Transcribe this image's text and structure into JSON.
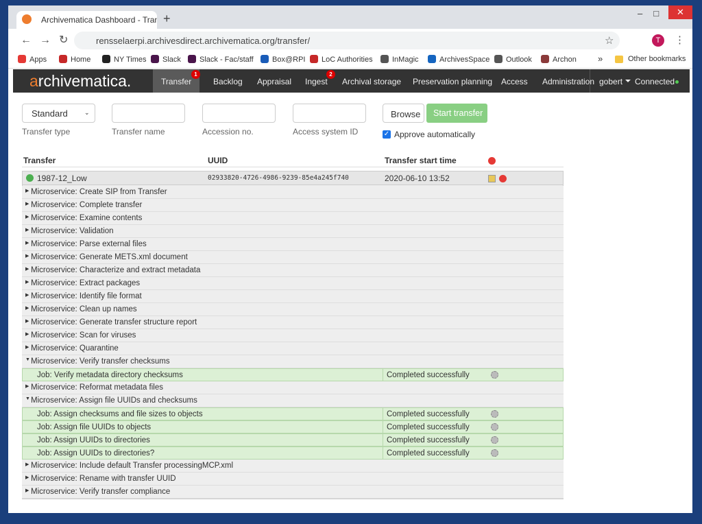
{
  "browser": {
    "tab_title": "Archivematica Dashboard - Trans",
    "url": "rensselaerpi.archivesdirect.archivematica.org/transfer/",
    "profile": "T",
    "bookmarks": [
      "Apps",
      "Home",
      "NY Times",
      "Slack",
      "Slack - Fac/staff",
      "Box@RPI",
      "LoC Authorities",
      "InMagic",
      "ArchivesSpace",
      "Outlook",
      "Archon"
    ],
    "overflow": "»",
    "other_bookmarks": "Other bookmarks"
  },
  "nav": {
    "logo": "archivematica.",
    "items": [
      {
        "label": "Transfer",
        "badge": 1
      },
      {
        "label": "Backlog"
      },
      {
        "label": "Appraisal"
      },
      {
        "label": "Ingest",
        "badge": 2
      },
      {
        "label": "Archival storage"
      },
      {
        "label": "Preservation planning"
      },
      {
        "label": "Access"
      },
      {
        "label": "Administration"
      }
    ],
    "user": "gobert",
    "status": "Connected"
  },
  "form": {
    "transfer_type": "Standard",
    "labels": [
      "Transfer type",
      "Transfer name",
      "Accession no.",
      "Access system ID"
    ],
    "browse": "Browse",
    "start": "Start transfer",
    "approve": "Approve automatically"
  },
  "table": {
    "headers": [
      "Transfer",
      "UUID",
      "Transfer start time"
    ],
    "transfer": {
      "name": "1987-12_Low",
      "uuid": "02933820-4726-4986-9239-85e4a245f740",
      "time": "2020-06-10 13:52"
    },
    "rows": [
      {
        "label": "Microservice: Create SIP from Transfer"
      },
      {
        "label": "Microservice: Complete transfer"
      },
      {
        "label": "Microservice: Examine contents"
      },
      {
        "label": "Microservice: Validation"
      },
      {
        "label": "Microservice: Parse external files"
      },
      {
        "label": "Microservice: Generate METS.xml document"
      },
      {
        "label": "Microservice: Characterize and extract metadata"
      },
      {
        "label": "Microservice: Extract packages"
      },
      {
        "label": "Microservice: Identify file format"
      },
      {
        "label": "Microservice: Clean up names"
      },
      {
        "label": "Microservice: Generate transfer structure report"
      },
      {
        "label": "Microservice: Scan for viruses"
      },
      {
        "label": "Microservice: Quarantine"
      },
      {
        "label": "Microservice: Verify transfer checksums",
        "expanded": true
      },
      {
        "label": "Job: Verify metadata directory checksums",
        "status": "Completed successfully"
      },
      {
        "label": "Microservice: Reformat metadata files"
      },
      {
        "label": "Microservice: Assign file UUIDs and checksums",
        "expanded": true
      },
      {
        "label": "Job: Assign checksums and file sizes to objects",
        "status": "Completed successfully"
      },
      {
        "label": "Job: Assign file UUIDs to objects",
        "status": "Completed successfully"
      },
      {
        "label": "Job: Assign UUIDs to directories",
        "status": "Completed successfully"
      },
      {
        "label": "Job: Assign UUIDs to directories?",
        "status": "Completed successfully"
      },
      {
        "label": "Microservice: Include default Transfer processingMCP.xml"
      },
      {
        "label": "Microservice: Rename with transfer UUID"
      },
      {
        "label": "Microservice: Verify transfer compliance"
      }
    ]
  }
}
